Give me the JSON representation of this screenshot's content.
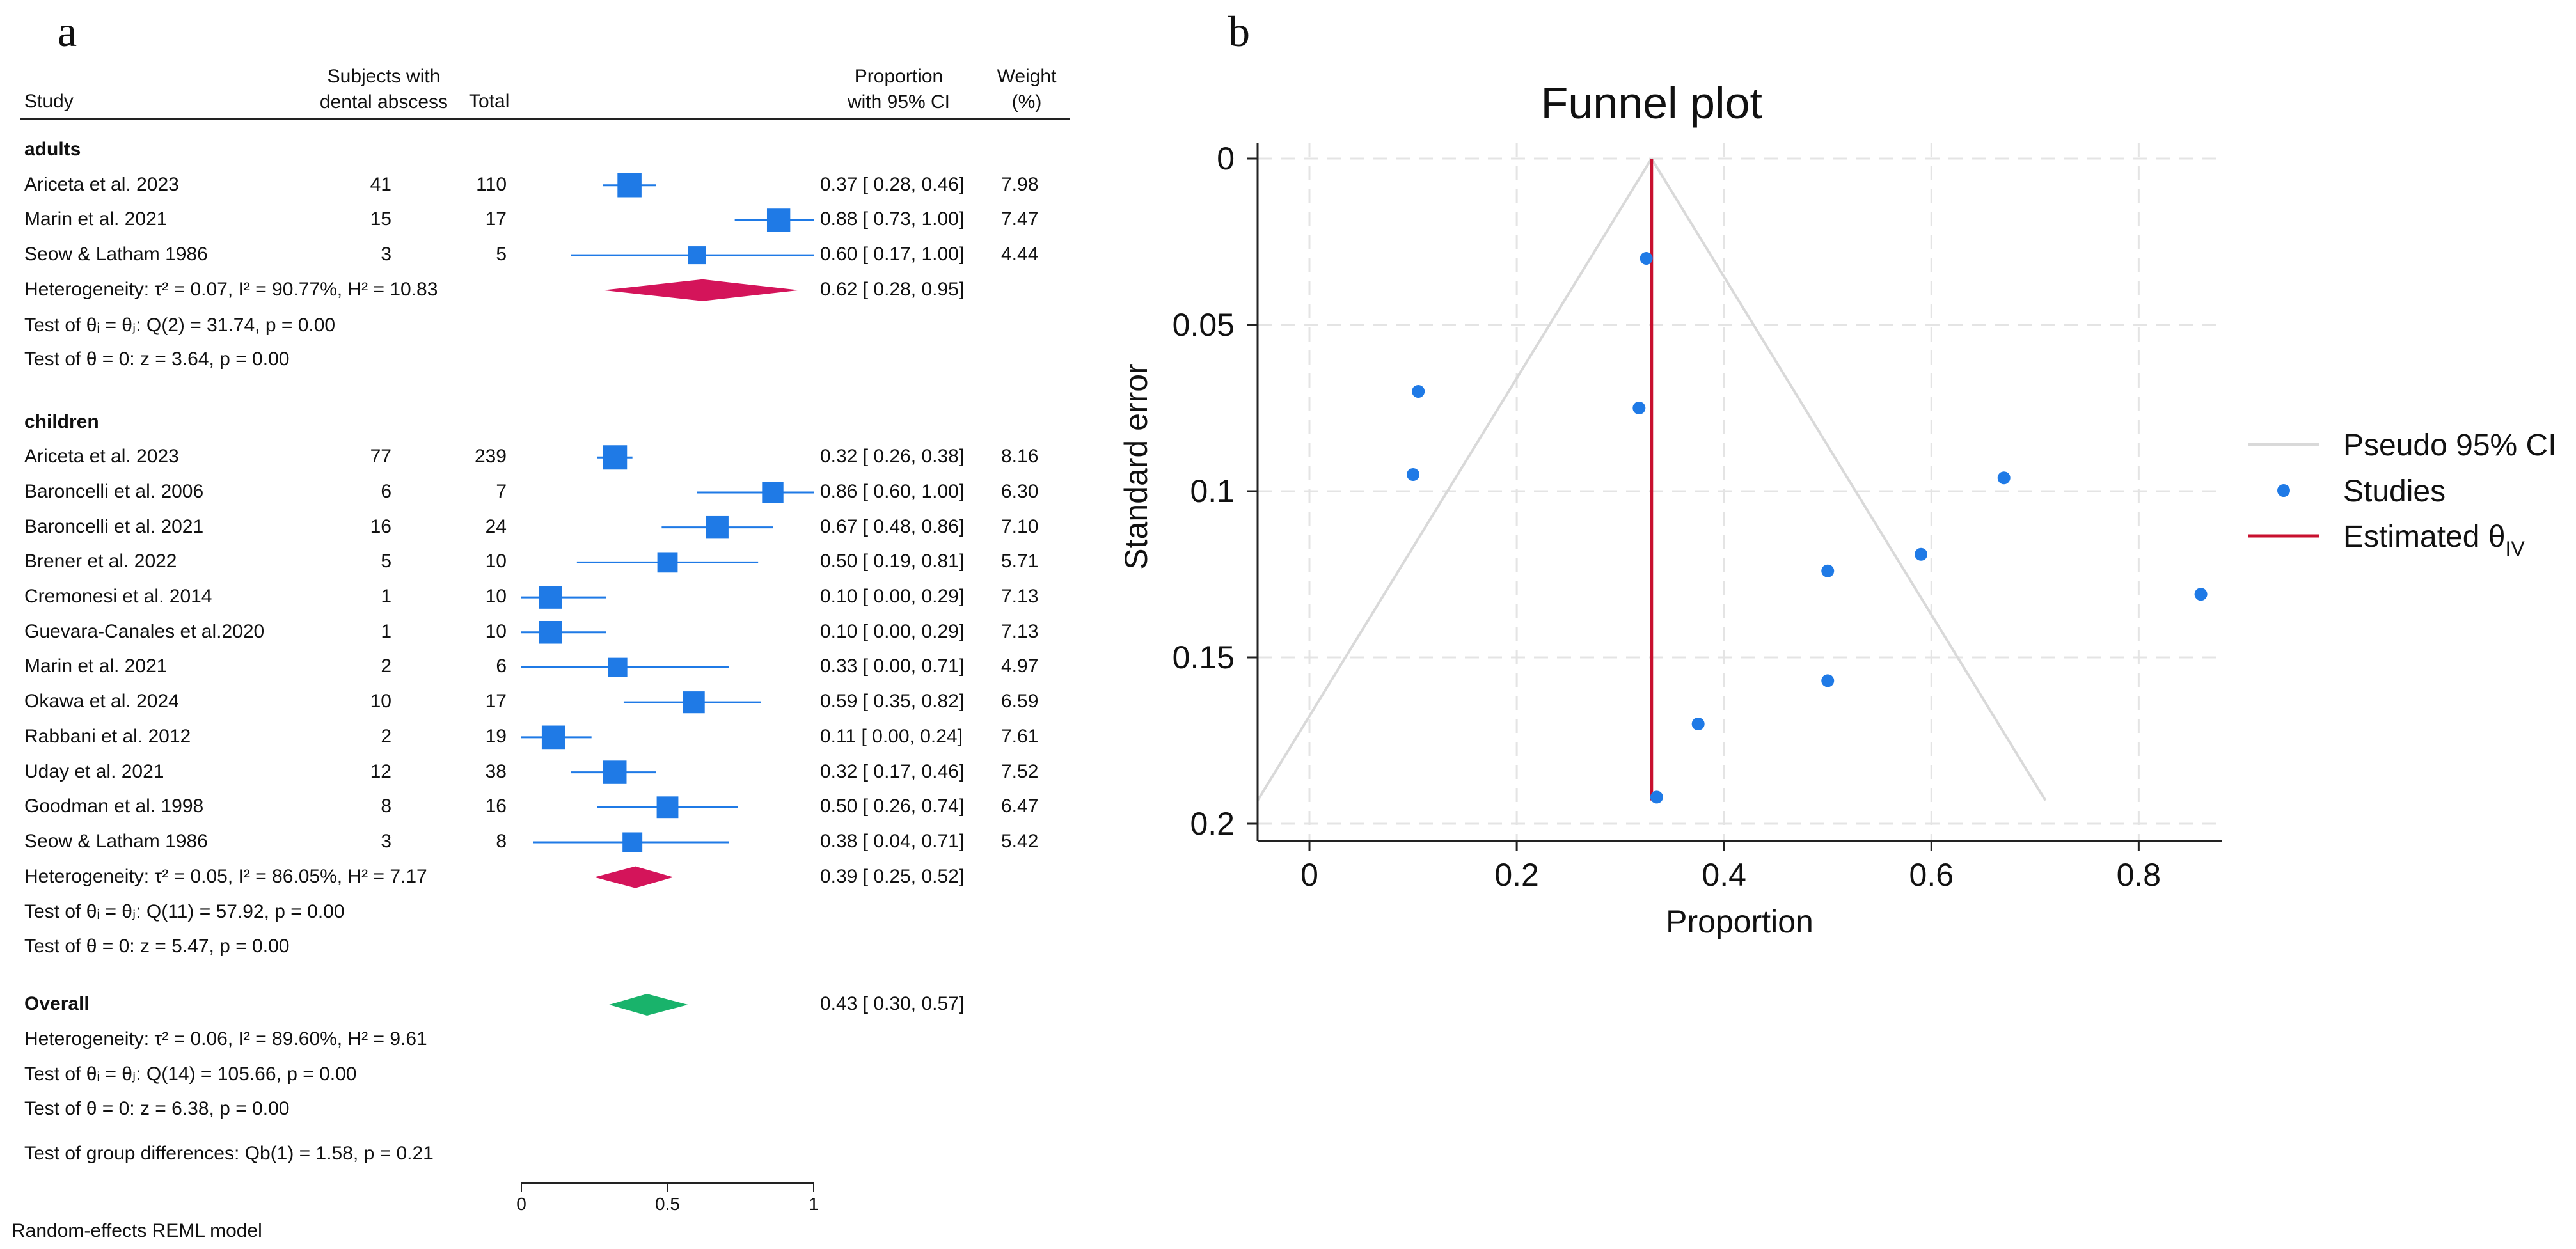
{
  "panel_a": {
    "letter": "a",
    "headers": {
      "study": "Study",
      "subjects_line1": "Subjects with",
      "subjects_line2": "dental abscess",
      "total": "Total",
      "prop_line1": "Proportion",
      "prop_line2": "with 95% CI",
      "weight_line1": "Weight",
      "weight_line2": "(%)"
    },
    "footnote": "Random-effects REML model"
  },
  "panel_b": {
    "letter": "b",
    "title": "Funnel plot",
    "xlabel": "Proportion",
    "ylabel": "Standard error",
    "legend": {
      "pseudo": "Pseudo 95% CI",
      "studies": "Studies",
      "estimated": "Estimated θIV"
    }
  },
  "chart_data": [
    {
      "type": "forest",
      "x_axis_ticks": [
        "0",
        "0.5",
        "1"
      ],
      "xlim": [
        0,
        1
      ],
      "groups": [
        {
          "name": "adults",
          "studies": [
            {
              "study": "Ariceta et al. 2023",
              "subjects": "41",
              "total": "110",
              "prop": 0.37,
              "lo": 0.28,
              "hi": 0.46,
              "ci_text": "0.37 [ 0.28,  0.46]",
              "weight": "7.98"
            },
            {
              "study": "Marin et al. 2021",
              "subjects": "15",
              "total": "17",
              "prop": 0.88,
              "lo": 0.73,
              "hi": 1.0,
              "ci_text": "0.88 [ 0.73,  1.00]",
              "weight": "7.47"
            },
            {
              "study": "Seow & Latham 1986",
              "subjects": "3",
              "total": "5",
              "prop": 0.6,
              "lo": 0.17,
              "hi": 1.0,
              "ci_text": "0.60 [ 0.17,  1.00]",
              "weight": "4.44"
            }
          ],
          "pooled": {
            "prop": 0.62,
            "lo": 0.28,
            "hi": 0.95,
            "ci_text": "0.62 [ 0.28,  0.95]"
          },
          "heterogeneity": "Heterogeneity: τ² = 0.07, I² = 90.77%, H² = 10.83",
          "test_theta_eq": "Test of θᵢ = θⱼ: Q(2) = 31.74, p = 0.00",
          "test_theta_0": "Test of θ = 0: z = 3.64, p = 0.00"
        },
        {
          "name": "children",
          "studies": [
            {
              "study": "Ariceta et al. 2023",
              "subjects": "77",
              "total": "239",
              "prop": 0.32,
              "lo": 0.26,
              "hi": 0.38,
              "ci_text": "0.32 [ 0.26,  0.38]",
              "weight": "8.16"
            },
            {
              "study": "Baroncelli et al. 2006",
              "subjects": "6",
              "total": "7",
              "prop": 0.86,
              "lo": 0.6,
              "hi": 1.0,
              "ci_text": "0.86 [ 0.60,  1.00]",
              "weight": "6.30"
            },
            {
              "study": "Baroncelli et al. 2021",
              "subjects": "16",
              "total": "24",
              "prop": 0.67,
              "lo": 0.48,
              "hi": 0.86,
              "ci_text": "0.67 [ 0.48,  0.86]",
              "weight": "7.10"
            },
            {
              "study": "Brener et al. 2022",
              "subjects": "5",
              "total": "10",
              "prop": 0.5,
              "lo": 0.19,
              "hi": 0.81,
              "ci_text": "0.50 [ 0.19,  0.81]",
              "weight": "5.71"
            },
            {
              "study": "Cremonesi et al. 2014",
              "subjects": "1",
              "total": "10",
              "prop": 0.1,
              "lo": 0.0,
              "hi": 0.29,
              "ci_text": "0.10 [ 0.00,  0.29]",
              "weight": "7.13"
            },
            {
              "study": "Guevara-Canales et al.2020",
              "subjects": "1",
              "total": "10",
              "prop": 0.1,
              "lo": 0.0,
              "hi": 0.29,
              "ci_text": "0.10 [ 0.00,  0.29]",
              "weight": "7.13"
            },
            {
              "study": "Marin et al. 2021",
              "subjects": "2",
              "total": "6",
              "prop": 0.33,
              "lo": 0.0,
              "hi": 0.71,
              "ci_text": "0.33 [ 0.00,  0.71]",
              "weight": "4.97"
            },
            {
              "study": "Okawa et al. 2024",
              "subjects": "10",
              "total": "17",
              "prop": 0.59,
              "lo": 0.35,
              "hi": 0.82,
              "ci_text": "0.59 [ 0.35,  0.82]",
              "weight": "6.59"
            },
            {
              "study": "Rabbani et al. 2012",
              "subjects": "2",
              "total": "19",
              "prop": 0.11,
              "lo": 0.0,
              "hi": 0.24,
              "ci_text": "0.11 [ 0.00,  0.24]",
              "weight": "7.61"
            },
            {
              "study": "Uday et al. 2021",
              "subjects": "12",
              "total": "38",
              "prop": 0.32,
              "lo": 0.17,
              "hi": 0.46,
              "ci_text": "0.32 [ 0.17,  0.46]",
              "weight": "7.52"
            },
            {
              "study": "Goodman et al. 1998",
              "subjects": "8",
              "total": "16",
              "prop": 0.5,
              "lo": 0.26,
              "hi": 0.74,
              "ci_text": "0.50 [ 0.26,  0.74]",
              "weight": "6.47"
            },
            {
              "study": "Seow & Latham 1986",
              "subjects": "3",
              "total": "8",
              "prop": 0.38,
              "lo": 0.04,
              "hi": 0.71,
              "ci_text": "0.38 [ 0.04,  0.71]",
              "weight": "5.42"
            }
          ],
          "pooled": {
            "prop": 0.39,
            "lo": 0.25,
            "hi": 0.52,
            "ci_text": "0.39 [ 0.25,  0.52]"
          },
          "heterogeneity": "Heterogeneity: τ² = 0.05, I² = 86.05%, H² = 7.17",
          "test_theta_eq": "Test of θᵢ = θⱼ: Q(11) = 57.92, p = 0.00",
          "test_theta_0": "Test of θ = 0: z = 5.47, p = 0.00"
        }
      ],
      "overall": {
        "label": "Overall",
        "prop": 0.43,
        "lo": 0.3,
        "hi": 0.57,
        "ci_text": "0.43 [ 0.30,  0.57]",
        "heterogeneity": "Heterogeneity: τ² = 0.06, I² = 89.60%, H² = 9.61",
        "test_theta_eq": "Test of θᵢ = θⱼ: Q(14) = 105.66, p = 0.00",
        "test_theta_0": "Test of θ = 0: z = 6.38, p = 0.00",
        "group_diff": "Test of group differences: Qb(1) = 1.58, p = 0.21"
      },
      "colors": {
        "study_marker": "#1f7ae6",
        "subgroup_diamond": "#d4145a",
        "overall_diamond": "#19b36b"
      }
    },
    {
      "type": "scatter",
      "title": "Funnel plot",
      "xlabel": "Proportion",
      "ylabel": "Standard error",
      "xlim": [
        -0.05,
        0.88
      ],
      "ylim": [
        0.2,
        0
      ],
      "y_reversed": true,
      "x_ticks": [
        0,
        0.2,
        0.4,
        0.6,
        0.8
      ],
      "x_tick_labels": [
        "0",
        "0.2",
        "0.4",
        "0.6",
        "0.8"
      ],
      "y_ticks": [
        0,
        0.05,
        0.1,
        0.15,
        0.2
      ],
      "y_tick_labels": [
        "0",
        "0.05",
        "0.1",
        "0.15",
        "0.2"
      ],
      "grid": true,
      "legend_position": "right",
      "estimated_theta": 0.33,
      "pseudo_ci_bottom": [
        -0.05,
        0.71
      ],
      "pseudo_ci_se": 0.193,
      "points": [
        {
          "x": 0.325,
          "y": 0.03
        },
        {
          "x": 0.105,
          "y": 0.07
        },
        {
          "x": 0.318,
          "y": 0.075
        },
        {
          "x": 0.1,
          "y": 0.095
        },
        {
          "x": 0.67,
          "y": 0.096
        },
        {
          "x": 0.59,
          "y": 0.119
        },
        {
          "x": 0.5,
          "y": 0.124
        },
        {
          "x": 0.86,
          "y": 0.131
        },
        {
          "x": 0.5,
          "y": 0.157
        },
        {
          "x": 0.375,
          "y": 0.17
        },
        {
          "x": 0.335,
          "y": 0.192
        }
      ],
      "series": [
        {
          "name": "Pseudo 95% CI",
          "color": "#d9d9d9"
        },
        {
          "name": "Studies",
          "color": "#1f7ae6"
        },
        {
          "name": "Estimated θIV",
          "color": "#c8102e"
        }
      ]
    }
  ]
}
